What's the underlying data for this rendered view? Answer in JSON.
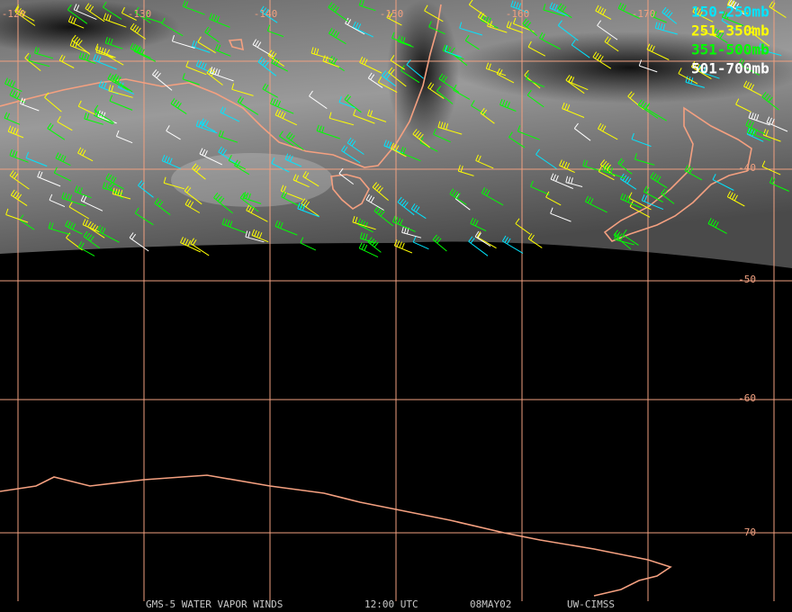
{
  "map": {
    "longitude_labels": [
      "-120",
      "-130",
      "-140",
      "-150",
      "-160",
      "-170"
    ],
    "latitude_labels": [
      "-40",
      "-50",
      "-60",
      "-70"
    ],
    "legend": [
      {
        "label": "150-250mb",
        "color": "#00e5ff"
      },
      {
        "label": "251-350mb",
        "color": "#ffff00"
      },
      {
        "label": "351-500mb",
        "color": "#00ff00"
      },
      {
        "label": "501-700mb",
        "color": "#ffffff"
      }
    ],
    "footer": [
      "GMS-5 WATER VAPOR WINDS",
      "12:00 UTC",
      "08MAY02",
      "UW-CIMSS"
    ],
    "grid_color": "#f0a080",
    "coast_color": "#f4a080"
  }
}
